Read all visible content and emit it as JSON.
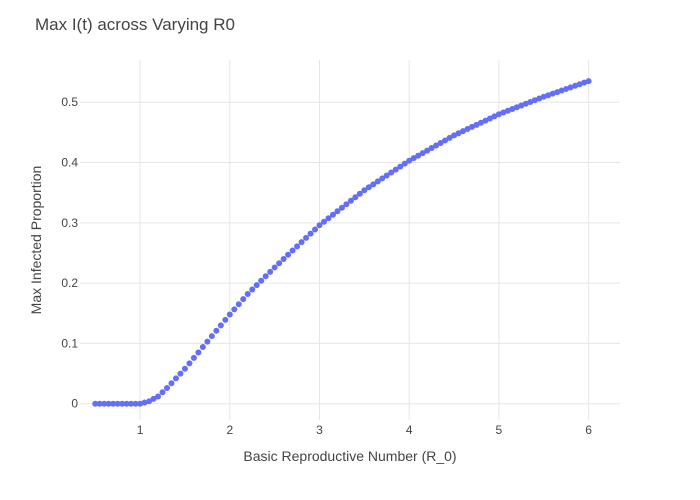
{
  "chart_data": {
    "type": "scatter",
    "title": "Max I(t) across Varying R0",
    "xlabel": "Basic Reproductive Number (R_0)",
    "ylabel": "Max Infected Proportion",
    "xlim": [
      0.33,
      6.35
    ],
    "ylim": [
      -0.027,
      0.57
    ],
    "x_ticks": [
      1,
      2,
      3,
      4,
      5,
      6
    ],
    "y_ticks": [
      0,
      0.1,
      0.2,
      0.3,
      0.4,
      0.5
    ],
    "x_tick_labels": [
      "1",
      "2",
      "3",
      "4",
      "5",
      "6"
    ],
    "y_tick_labels": [
      "0",
      "0.1",
      "0.2",
      "0.3",
      "0.4",
      "0.5"
    ],
    "grid": true,
    "marker_color": "#636efa",
    "x_range": [
      0.5,
      6.0
    ],
    "n_points": 111,
    "series": [
      {
        "x": [
          1.0,
          1.1,
          1.2,
          1.3,
          1.4,
          1.5,
          1.6,
          1.7,
          1.8,
          1.9,
          2.0,
          2.2,
          2.5,
          3.0,
          3.5,
          4.0,
          4.5,
          5.0,
          5.5,
          6.0
        ],
        "y": [
          0.0,
          0.004,
          0.012,
          0.026,
          0.042,
          0.058,
          0.076,
          0.094,
          0.112,
          0.13,
          0.148,
          0.182,
          0.226,
          0.296,
          0.354,
          0.403,
          0.445,
          0.48,
          0.509,
          0.535
        ]
      }
    ]
  }
}
